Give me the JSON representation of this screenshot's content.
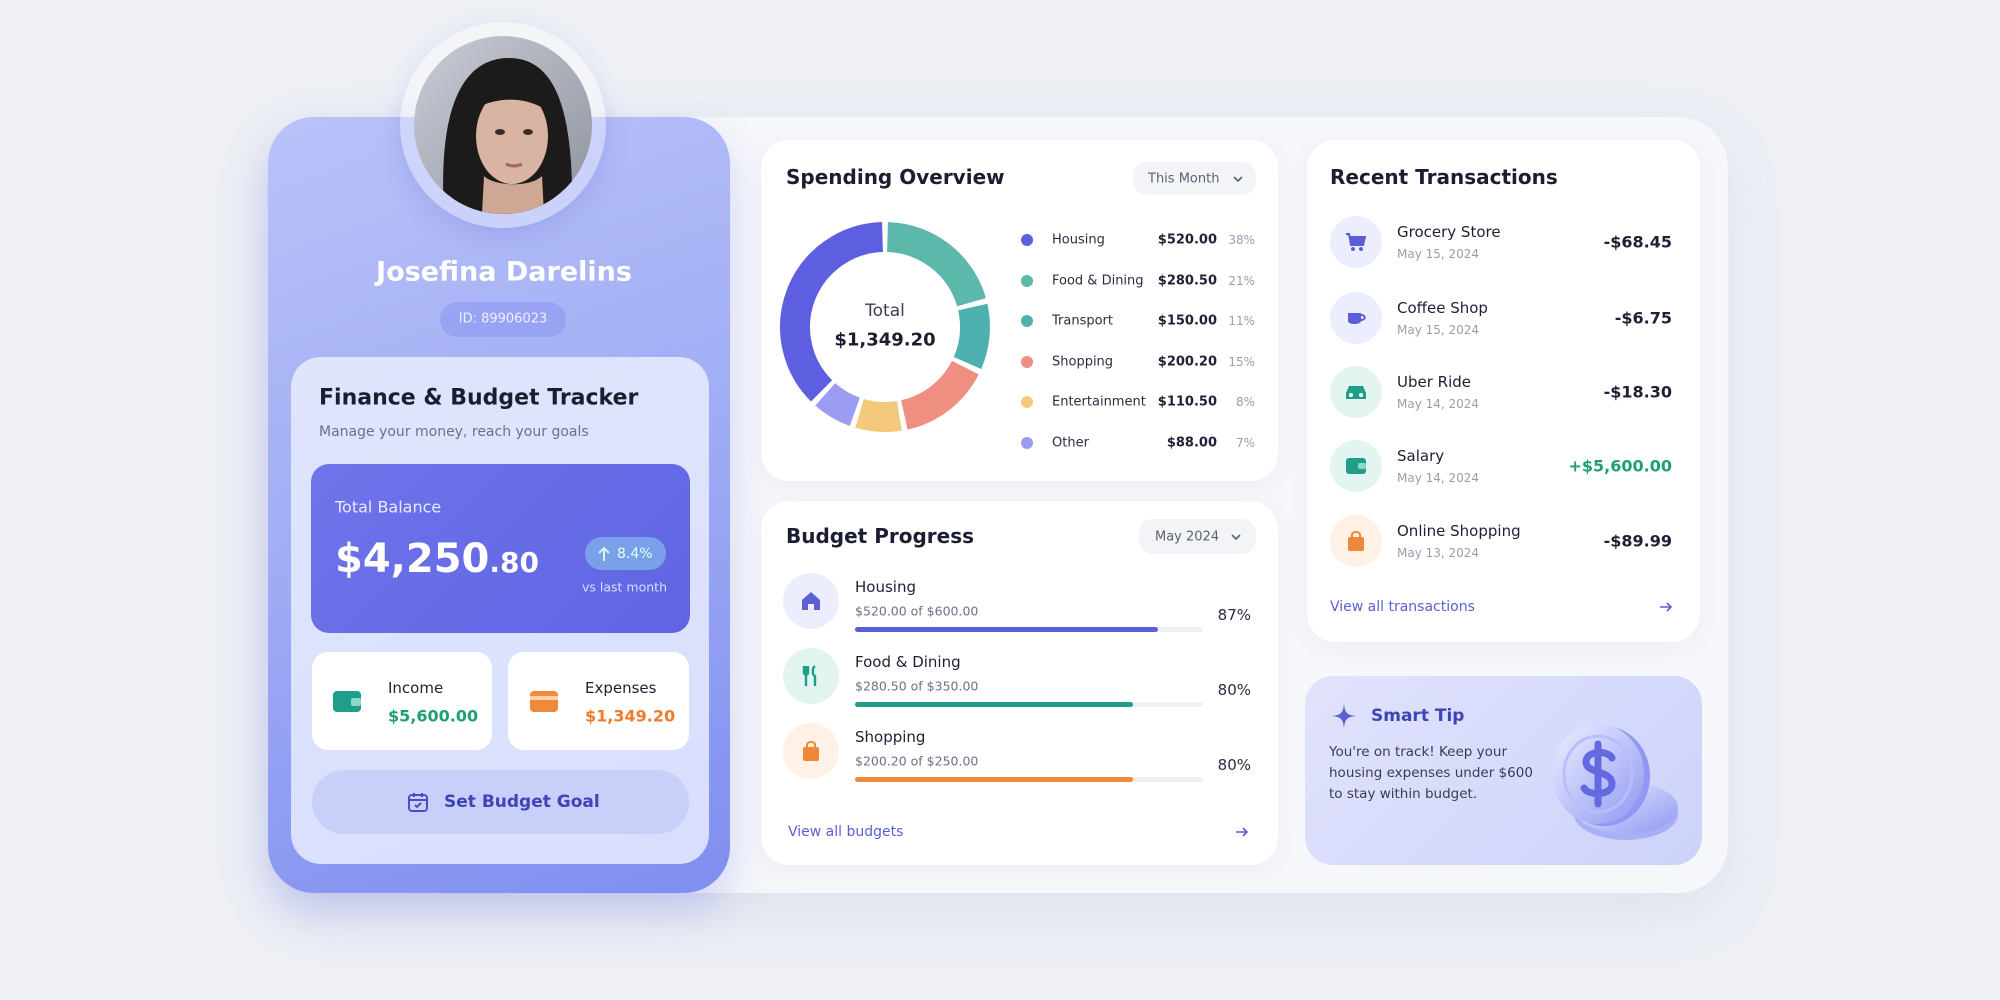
{
  "profile": {
    "name": "Josefina Darelins",
    "id": "ID: 89906023"
  },
  "tracker": {
    "title": "Finance & Budget Tracker",
    "subtitle": "Manage your money, reach your goals",
    "balance_label": "Total Balance",
    "balance_whole": "$4,250",
    "balance_cents": ".80",
    "change": "8.4%",
    "change_note": "vs last month",
    "income_label": "Income",
    "income": "$5,600.00",
    "expenses_label": "Expenses",
    "expenses": "$1,349.20",
    "button": "Set Budget Goal"
  },
  "spending": {
    "title": "Spending Overview",
    "period": "This Month",
    "total_label": "Total",
    "total": "$1,349.20",
    "items": [
      {
        "name": "Housing",
        "amount": "$520.00",
        "share": 38,
        "share_label": "38%",
        "color": "#5d5fe0"
      },
      {
        "name": "Food & Dining",
        "amount": "$280.50",
        "share": 21,
        "share_label": "21%",
        "color": "#5bb8aa"
      },
      {
        "name": "Transport",
        "amount": "$150.00",
        "share": 11,
        "share_label": "11%",
        "color": "#4fb0b0"
      },
      {
        "name": "Shopping",
        "amount": "$200.20",
        "share": 15,
        "share_label": "15%",
        "color": "#ef8f82"
      },
      {
        "name": "Entertainment",
        "amount": "$110.50",
        "share": 8,
        "share_label": "8%",
        "color": "#f5c97c"
      },
      {
        "name": "Other",
        "amount": "$88.00",
        "share": 7,
        "share_label": "7%",
        "color": "#9b9cf2"
      }
    ]
  },
  "budgets": {
    "title": "Budget Progress",
    "period": "May 2024",
    "items": [
      {
        "name": "Housing",
        "detail": "$520.00 of $600.00",
        "progress": 87,
        "progress_label": "87%",
        "color": "#5b5fd6"
      },
      {
        "name": "Food & Dining",
        "detail": "$280.50 of $350.00",
        "progress": 80,
        "progress_label": "80%",
        "color": "#1f9e8a"
      },
      {
        "name": "Shopping",
        "detail": "$200.20 of $250.00",
        "progress": 80,
        "progress_label": "80%",
        "color": "#f0883a"
      }
    ],
    "link": "View all budgets"
  },
  "transactions": {
    "title": "Recent Transactions",
    "items": [
      {
        "name": "Grocery Store",
        "date": "May 15, 2024",
        "amount": "-$68.45",
        "color": "#1e2035"
      },
      {
        "name": "Coffee Shop",
        "date": "May 15, 2024",
        "amount": "-$6.75",
        "color": "#1e2035"
      },
      {
        "name": "Uber Ride",
        "date": "May 14, 2024",
        "amount": "-$18.30",
        "color": "#1e2035"
      },
      {
        "name": "Salary",
        "date": "May 14, 2024",
        "amount": "+$5,600.00",
        "color": "#1f9e76"
      },
      {
        "name": "Online Shopping",
        "date": "May 13, 2024",
        "amount": "-$89.99",
        "color": "#1e2035"
      }
    ],
    "link": "View all transactions"
  },
  "tip": {
    "title": "Smart Tip",
    "lines": [
      "You're on track! Keep your",
      "housing expenses under $600",
      "to stay within budget."
    ]
  }
}
